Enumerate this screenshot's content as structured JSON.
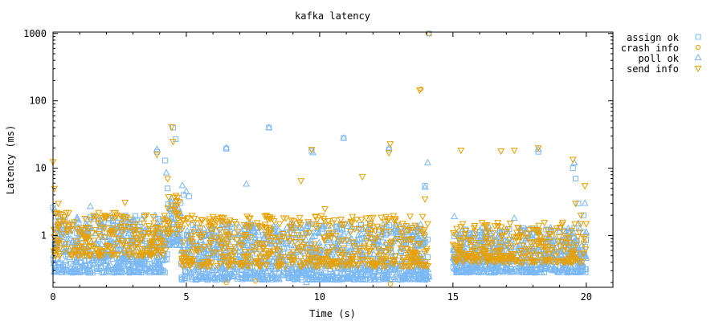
{
  "chart_data": {
    "type": "scatter",
    "title": "kafka latency",
    "xlabel": "Time (s)",
    "ylabel": "Latency (ms)",
    "xlim": [
      0,
      21
    ],
    "ylim": [
      0.17,
      1050
    ],
    "yscale": "log",
    "x_ticks": [
      0,
      5,
      10,
      15,
      20
    ],
    "x_tick_labels": [
      "0",
      "5",
      "10",
      "15",
      "20"
    ],
    "y_ticks": [
      1,
      10,
      100,
      1000
    ],
    "y_tick_labels": [
      "1",
      "10",
      "100",
      "1000"
    ],
    "grid": false,
    "legend_position": "top-right outside",
    "series": [
      {
        "name": "assign ok",
        "marker": "square",
        "color": "#7ab8f5",
        "points": [
          [
            0.0,
            2.6
          ],
          [
            0.1,
            1.9
          ],
          [
            0.2,
            1.4
          ],
          [
            0.35,
            1.1
          ],
          [
            0.6,
            0.9
          ],
          [
            0.9,
            0.7
          ],
          [
            1.3,
            0.6
          ],
          [
            1.8,
            0.55
          ],
          [
            2.2,
            0.5
          ],
          [
            2.8,
            0.45
          ],
          [
            3.3,
            0.5
          ],
          [
            3.8,
            0.6
          ],
          [
            3.9,
            17.5
          ],
          [
            4.2,
            13.0
          ],
          [
            4.3,
            5.0
          ],
          [
            4.5,
            40.0
          ],
          [
            4.6,
            27.0
          ],
          [
            4.9,
            4.0
          ],
          [
            5.1,
            3.8
          ],
          [
            5.5,
            0.6
          ],
          [
            6.0,
            0.55
          ],
          [
            6.5,
            19.5
          ],
          [
            7.0,
            0.5
          ],
          [
            8.1,
            40.0
          ],
          [
            8.5,
            0.45
          ],
          [
            9.0,
            0.5
          ],
          [
            9.7,
            18.0
          ],
          [
            10.0,
            0.5
          ],
          [
            10.9,
            28.0
          ],
          [
            11.5,
            0.45
          ],
          [
            12.0,
            0.45
          ],
          [
            12.6,
            19.0
          ],
          [
            13.0,
            0.5
          ],
          [
            13.7,
            0.7
          ],
          [
            13.95,
            5.5
          ],
          [
            14.1,
            1000.0
          ],
          [
            15.3,
            0.9
          ],
          [
            15.7,
            0.6
          ],
          [
            16.2,
            0.5
          ],
          [
            16.8,
            0.5
          ],
          [
            18.2,
            17.5
          ],
          [
            18.8,
            0.5
          ],
          [
            19.2,
            0.5
          ],
          [
            19.5,
            10.0
          ],
          [
            19.6,
            7.0
          ],
          [
            19.7,
            3.0
          ],
          [
            19.9,
            2.0
          ],
          [
            20.0,
            1.0
          ]
        ]
      },
      {
        "name": "crash info",
        "marker": "circle",
        "color": "#e8a000",
        "points": [
          [
            6.5,
            0.2
          ],
          [
            7.6,
            0.21
          ],
          [
            12.65,
            0.19
          ],
          [
            13.8,
            150.0
          ],
          [
            14.1,
            1000.0
          ]
        ]
      },
      {
        "name": "poll ok",
        "marker": "triangle-up",
        "color": "#7ab8f5",
        "points": [
          [
            0.05,
            2.4
          ],
          [
            0.4,
            1.2
          ],
          [
            0.9,
            0.8
          ],
          [
            1.4,
            2.7
          ],
          [
            2.0,
            0.5
          ],
          [
            2.7,
            0.45
          ],
          [
            3.2,
            0.4
          ],
          [
            3.9,
            19.0
          ],
          [
            4.25,
            8.5
          ],
          [
            4.45,
            3.5
          ],
          [
            4.85,
            5.5
          ],
          [
            5.0,
            4.5
          ],
          [
            6.5,
            20.0
          ],
          [
            7.25,
            5.8
          ],
          [
            8.1,
            40.0
          ],
          [
            9.5,
            0.2
          ],
          [
            9.75,
            17.0
          ],
          [
            10.2,
            0.5
          ],
          [
            10.9,
            28.0
          ],
          [
            12.0,
            0.4
          ],
          [
            12.6,
            20.0
          ],
          [
            13.5,
            0.4
          ],
          [
            13.95,
            5.2
          ],
          [
            14.05,
            12.0
          ],
          [
            15.05,
            1.9
          ],
          [
            15.5,
            0.5
          ],
          [
            16.5,
            0.4
          ],
          [
            17.3,
            1.8
          ],
          [
            18.2,
            19.0
          ],
          [
            18.8,
            0.4
          ],
          [
            19.4,
            0.4
          ],
          [
            19.55,
            12.0
          ],
          [
            19.7,
            1.5
          ],
          [
            19.95,
            3.0
          ]
        ]
      },
      {
        "name": "send info",
        "marker": "triangle-down",
        "color": "#e8a000",
        "points": [
          [
            0.0,
            12.5
          ],
          [
            0.05,
            5.0
          ],
          [
            0.2,
            3.0
          ],
          [
            0.5,
            2.2
          ],
          [
            0.8,
            1.6
          ],
          [
            1.2,
            1.8
          ],
          [
            1.7,
            1.5
          ],
          [
            2.2,
            1.3
          ],
          [
            2.7,
            3.1
          ],
          [
            3.1,
            1.5
          ],
          [
            3.6,
            1.4
          ],
          [
            3.9,
            16.0
          ],
          [
            4.3,
            7.0
          ],
          [
            4.45,
            41.0
          ],
          [
            4.5,
            25.0
          ],
          [
            4.7,
            2.0
          ],
          [
            5.3,
            1.8
          ],
          [
            6.0,
            1.5
          ],
          [
            6.6,
            1.5
          ],
          [
            7.3,
            1.4
          ],
          [
            8.0,
            1.3
          ],
          [
            8.5,
            1.5
          ],
          [
            9.3,
            6.5
          ],
          [
            9.7,
            19.0
          ],
          [
            10.2,
            2.5
          ],
          [
            10.8,
            1.5
          ],
          [
            11.6,
            7.5
          ],
          [
            12.0,
            1.3
          ],
          [
            12.6,
            17.0
          ],
          [
            12.65,
            23.0
          ],
          [
            13.3,
            1.2
          ],
          [
            13.75,
            145.0
          ],
          [
            13.95,
            3.5
          ],
          [
            14.05,
            1.5
          ],
          [
            15.3,
            18.5
          ],
          [
            15.8,
            1.3
          ],
          [
            16.3,
            1.2
          ],
          [
            16.8,
            18.0
          ],
          [
            17.3,
            18.5
          ],
          [
            18.2,
            20.0
          ],
          [
            18.8,
            1.2
          ],
          [
            19.5,
            13.5
          ],
          [
            19.6,
            3.0
          ],
          [
            19.8,
            2.0
          ],
          [
            19.95,
            5.5
          ],
          [
            20.0,
            1.5
          ]
        ]
      }
    ],
    "dense_clusters": [
      {
        "series": [
          "assign ok",
          "poll ok"
        ],
        "x_range": [
          0.0,
          4.3
        ],
        "y_range": [
          0.28,
          2.0
        ]
      },
      {
        "series": [
          "assign ok",
          "poll ok"
        ],
        "x_range": [
          4.3,
          4.8
        ],
        "y_range": [
          0.7,
          3.5
        ]
      },
      {
        "series": [
          "assign ok",
          "poll ok"
        ],
        "x_range": [
          4.8,
          14.1
        ],
        "y_range": [
          0.22,
          1.5
        ]
      },
      {
        "series": [
          "assign ok",
          "poll ok"
        ],
        "x_range": [
          15.0,
          20.0
        ],
        "y_range": [
          0.28,
          1.3
        ]
      },
      {
        "series": [
          "send info"
        ],
        "x_range": [
          0.0,
          4.3
        ],
        "y_range": [
          0.5,
          2.2
        ]
      },
      {
        "series": [
          "send info"
        ],
        "x_range": [
          4.3,
          4.8
        ],
        "y_range": [
          1.0,
          4.0
        ]
      },
      {
        "series": [
          "send info"
        ],
        "x_range": [
          4.8,
          14.1
        ],
        "y_range": [
          0.35,
          2.0
        ]
      },
      {
        "series": [
          "send info"
        ],
        "x_range": [
          15.0,
          20.0
        ],
        "y_range": [
          0.4,
          1.6
        ]
      }
    ]
  }
}
